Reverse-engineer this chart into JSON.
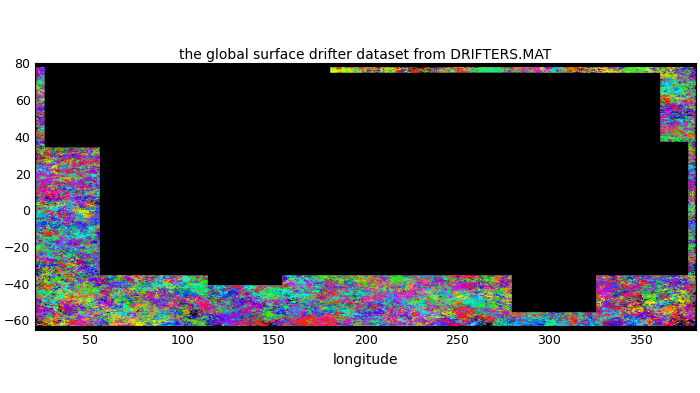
{
  "title": "the global surface drifter dataset from DRIFTERS.MAT",
  "xlabel": "longitude",
  "ylabel": "",
  "xlim": [
    20,
    380
  ],
  "ylim": [
    -65,
    80
  ],
  "xticks": [
    50,
    100,
    150,
    200,
    250,
    300,
    350
  ],
  "yticks": [
    -60,
    -40,
    -20,
    0,
    20,
    40,
    60,
    80
  ],
  "background_color": "#000000",
  "figure_bg": "#ffffff",
  "title_fontsize": 10,
  "axis_label_fontsize": 10,
  "tick_labelsize": 9,
  "n_drifters": 3000,
  "n_steps": 300,
  "random_seed": 42,
  "lon_shift": 20
}
